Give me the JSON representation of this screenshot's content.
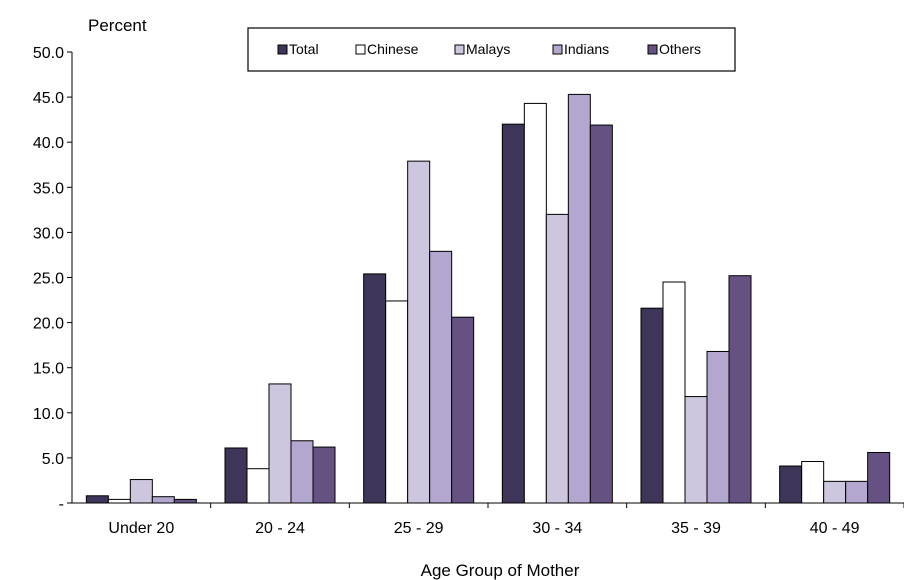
{
  "chart_data": {
    "type": "bar",
    "ylabel": "Percent",
    "xlabel": "Age Group of Mother",
    "ylim": [
      0,
      50
    ],
    "yticks": [
      "-",
      "5.0",
      "10.0",
      "15.0",
      "20.0",
      "25.0",
      "30.0",
      "35.0",
      "40.0",
      "45.0",
      "50.0"
    ],
    "categories": [
      "Under 20",
      "20 - 24",
      "25 - 29",
      "30 - 34",
      "35 - 39",
      "40 - 49"
    ],
    "legend_position": "top-center",
    "grid": false,
    "series": [
      {
        "name": "Total",
        "color": "#3f3558",
        "values": [
          0.8,
          6.1,
          25.4,
          42.0,
          21.6,
          4.1
        ]
      },
      {
        "name": "Chinese",
        "color": "#ffffff",
        "values": [
          0.4,
          3.8,
          22.4,
          44.3,
          24.5,
          4.6
        ]
      },
      {
        "name": "Malays",
        "color": "#cdc6de",
        "values": [
          2.6,
          13.2,
          37.9,
          32.0,
          11.8,
          2.4
        ]
      },
      {
        "name": "Indians",
        "color": "#b3a7cf",
        "values": [
          0.7,
          6.9,
          27.9,
          45.3,
          16.8,
          2.4
        ]
      },
      {
        "name": "Others",
        "color": "#655283",
        "values": [
          0.4,
          6.2,
          20.6,
          41.9,
          25.2,
          5.6
        ]
      }
    ]
  }
}
